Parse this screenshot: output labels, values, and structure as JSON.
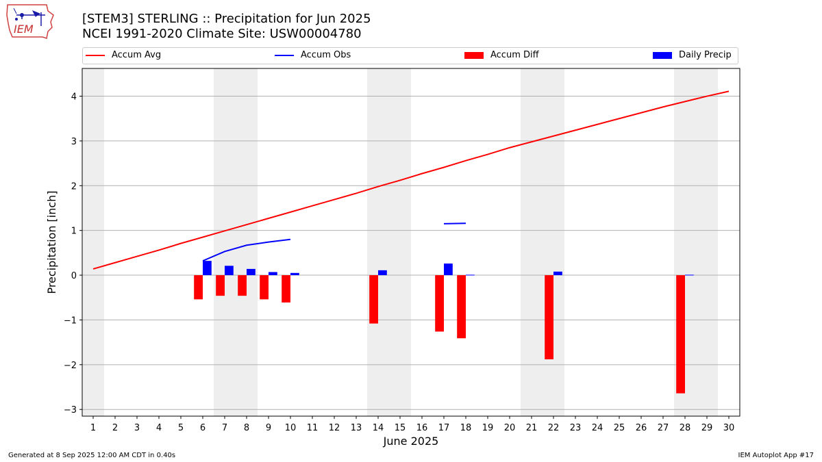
{
  "header": {
    "title_line1": "[STEM3] STERLING :: Precipitation for Jun 2025",
    "title_line2": "NCEI 1991-2020 Climate Site: USW00004780"
  },
  "logo": {
    "text": "IEM",
    "icon": "iem-iowa-logo"
  },
  "footer": {
    "left": "Generated at 8 Sep 2025 12:00 AM CDT in 0.40s",
    "right": "IEM Autoplot App #17"
  },
  "colors": {
    "avg": "#ff0000",
    "obs": "#0000ff",
    "diff": "#ff0000",
    "daily": "#0000ff",
    "weekend": "#eeeeee",
    "grid": "#b0b0b0"
  },
  "chart_data": {
    "type": "bar",
    "xlabel": "June 2025",
    "ylabel": "Precipitation [inch]",
    "xlim": [
      0.5,
      30.5
    ],
    "ylim": [
      -3.15,
      4.62
    ],
    "yticks": [
      -3,
      -2,
      -1,
      0,
      1,
      2,
      3,
      4
    ],
    "ytick_labels": [
      "−3",
      "−2",
      "−1",
      "0",
      "1",
      "2",
      "3",
      "4"
    ],
    "days": [
      1,
      2,
      3,
      4,
      5,
      6,
      7,
      8,
      9,
      10,
      11,
      12,
      13,
      14,
      15,
      16,
      17,
      18,
      19,
      20,
      21,
      22,
      23,
      24,
      25,
      26,
      27,
      28,
      29,
      30
    ],
    "weekend_days": [
      1,
      7,
      8,
      14,
      15,
      21,
      22,
      28,
      29
    ],
    "legend_position": "top, above plot",
    "grid": "horizontal",
    "series": [
      {
        "name": "Accum Avg",
        "kind": "line",
        "x": [
          1,
          2,
          3,
          4,
          5,
          6,
          7,
          8,
          9,
          10,
          11,
          12,
          13,
          14,
          15,
          16,
          17,
          18,
          19,
          20,
          21,
          22,
          23,
          24,
          25,
          26,
          27,
          28,
          29,
          30
        ],
        "values": [
          0.14,
          0.28,
          0.42,
          0.56,
          0.71,
          0.85,
          0.99,
          1.13,
          1.27,
          1.41,
          1.55,
          1.69,
          1.83,
          1.98,
          2.12,
          2.27,
          2.41,
          2.56,
          2.7,
          2.85,
          2.98,
          3.11,
          3.24,
          3.37,
          3.5,
          3.63,
          3.76,
          3.88,
          4.0,
          4.11
        ]
      },
      {
        "name": "Accum Obs",
        "kind": "line",
        "segments": [
          {
            "x": [
              6,
              7,
              8,
              9,
              10
            ],
            "values": [
              0.32,
              0.53,
              0.67,
              0.74,
              0.8
            ]
          },
          {
            "x": [
              17,
              18
            ],
            "values": [
              1.15,
              1.16
            ]
          }
        ]
      },
      {
        "name": "Accum Diff",
        "kind": "bar",
        "x": [
          6,
          7,
          8,
          9,
          10,
          14,
          17,
          18,
          22,
          28
        ],
        "values": [
          -0.54,
          -0.46,
          -0.46,
          -0.54,
          -0.61,
          -1.08,
          -1.26,
          -1.41,
          -1.88,
          -2.64
        ]
      },
      {
        "name": "Daily Precip",
        "kind": "bar",
        "x": [
          6,
          7,
          8,
          9,
          10,
          14,
          17,
          18,
          22,
          28
        ],
        "values": [
          0.32,
          0.21,
          0.14,
          0.07,
          0.05,
          0.11,
          0.26,
          0.01,
          0.08,
          0.01
        ]
      }
    ]
  }
}
